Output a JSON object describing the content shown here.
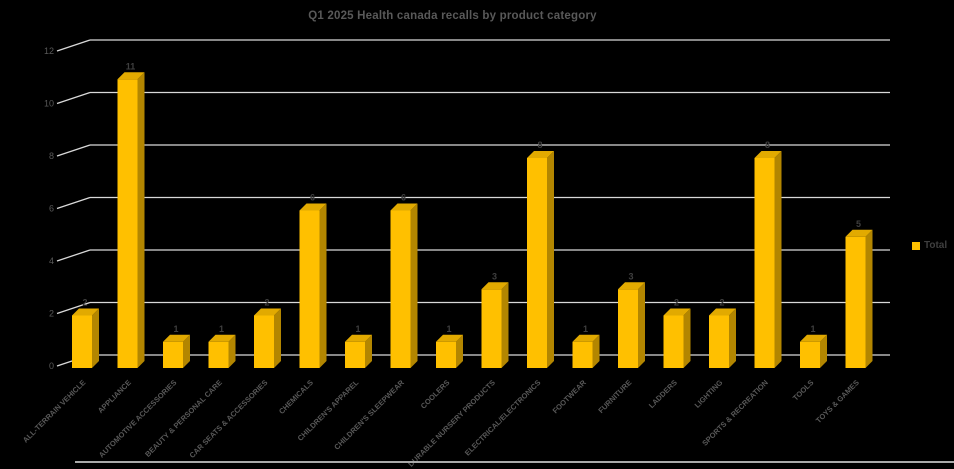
{
  "window": {
    "background_color": "#000000"
  },
  "chart_data": {
    "type": "bar",
    "style": "3d-column",
    "title": "Q1 2025 Health canada recalls by product category",
    "categories": [
      "ALL-TERRAIN VEHICLE",
      "APPLIANCE",
      "AUTOMOTIVE ACCESSORIES",
      "BEAUTY & PERSONAL CARE",
      "CAR SEATS & ACCESSORIES",
      "CHEMICALS",
      "CHILDREN'S APPAREL",
      "CHILDREN'S SLEEPWEAR",
      "COOLERS",
      "DURABLE NURSERY PRODUCTS",
      "ELECTRICAL/ELECTRONICS",
      "FOOTWEAR",
      "FURNITURE",
      "LADDERS",
      "LIGHTING",
      "SPORTS & RECREATION",
      "TOOLS",
      "TOYS & GAMES"
    ],
    "series": [
      {
        "name": "Total",
        "values": [
          2,
          11,
          1,
          1,
          2,
          6,
          1,
          6,
          1,
          3,
          8,
          1,
          3,
          2,
          2,
          8,
          1,
          5
        ]
      }
    ],
    "y_ticks": [
      0,
      2,
      4,
      6,
      8,
      10,
      12
    ],
    "ylim": [
      0,
      12
    ],
    "xlabel": "",
    "ylabel": "",
    "grid": true,
    "data_labels": true,
    "legend_position": "right",
    "colors": {
      "bar_front": "#FFC000",
      "bar_top": "#E2AA00",
      "bar_side": "#B38600",
      "gridline": "#D9D9D9",
      "title_text": "#595959",
      "axis_text": "#595959",
      "data_label_text": "#3F3F3F",
      "background": "#000000"
    }
  },
  "legend": {
    "label": "Total",
    "swatch_color": "#FFC000"
  }
}
